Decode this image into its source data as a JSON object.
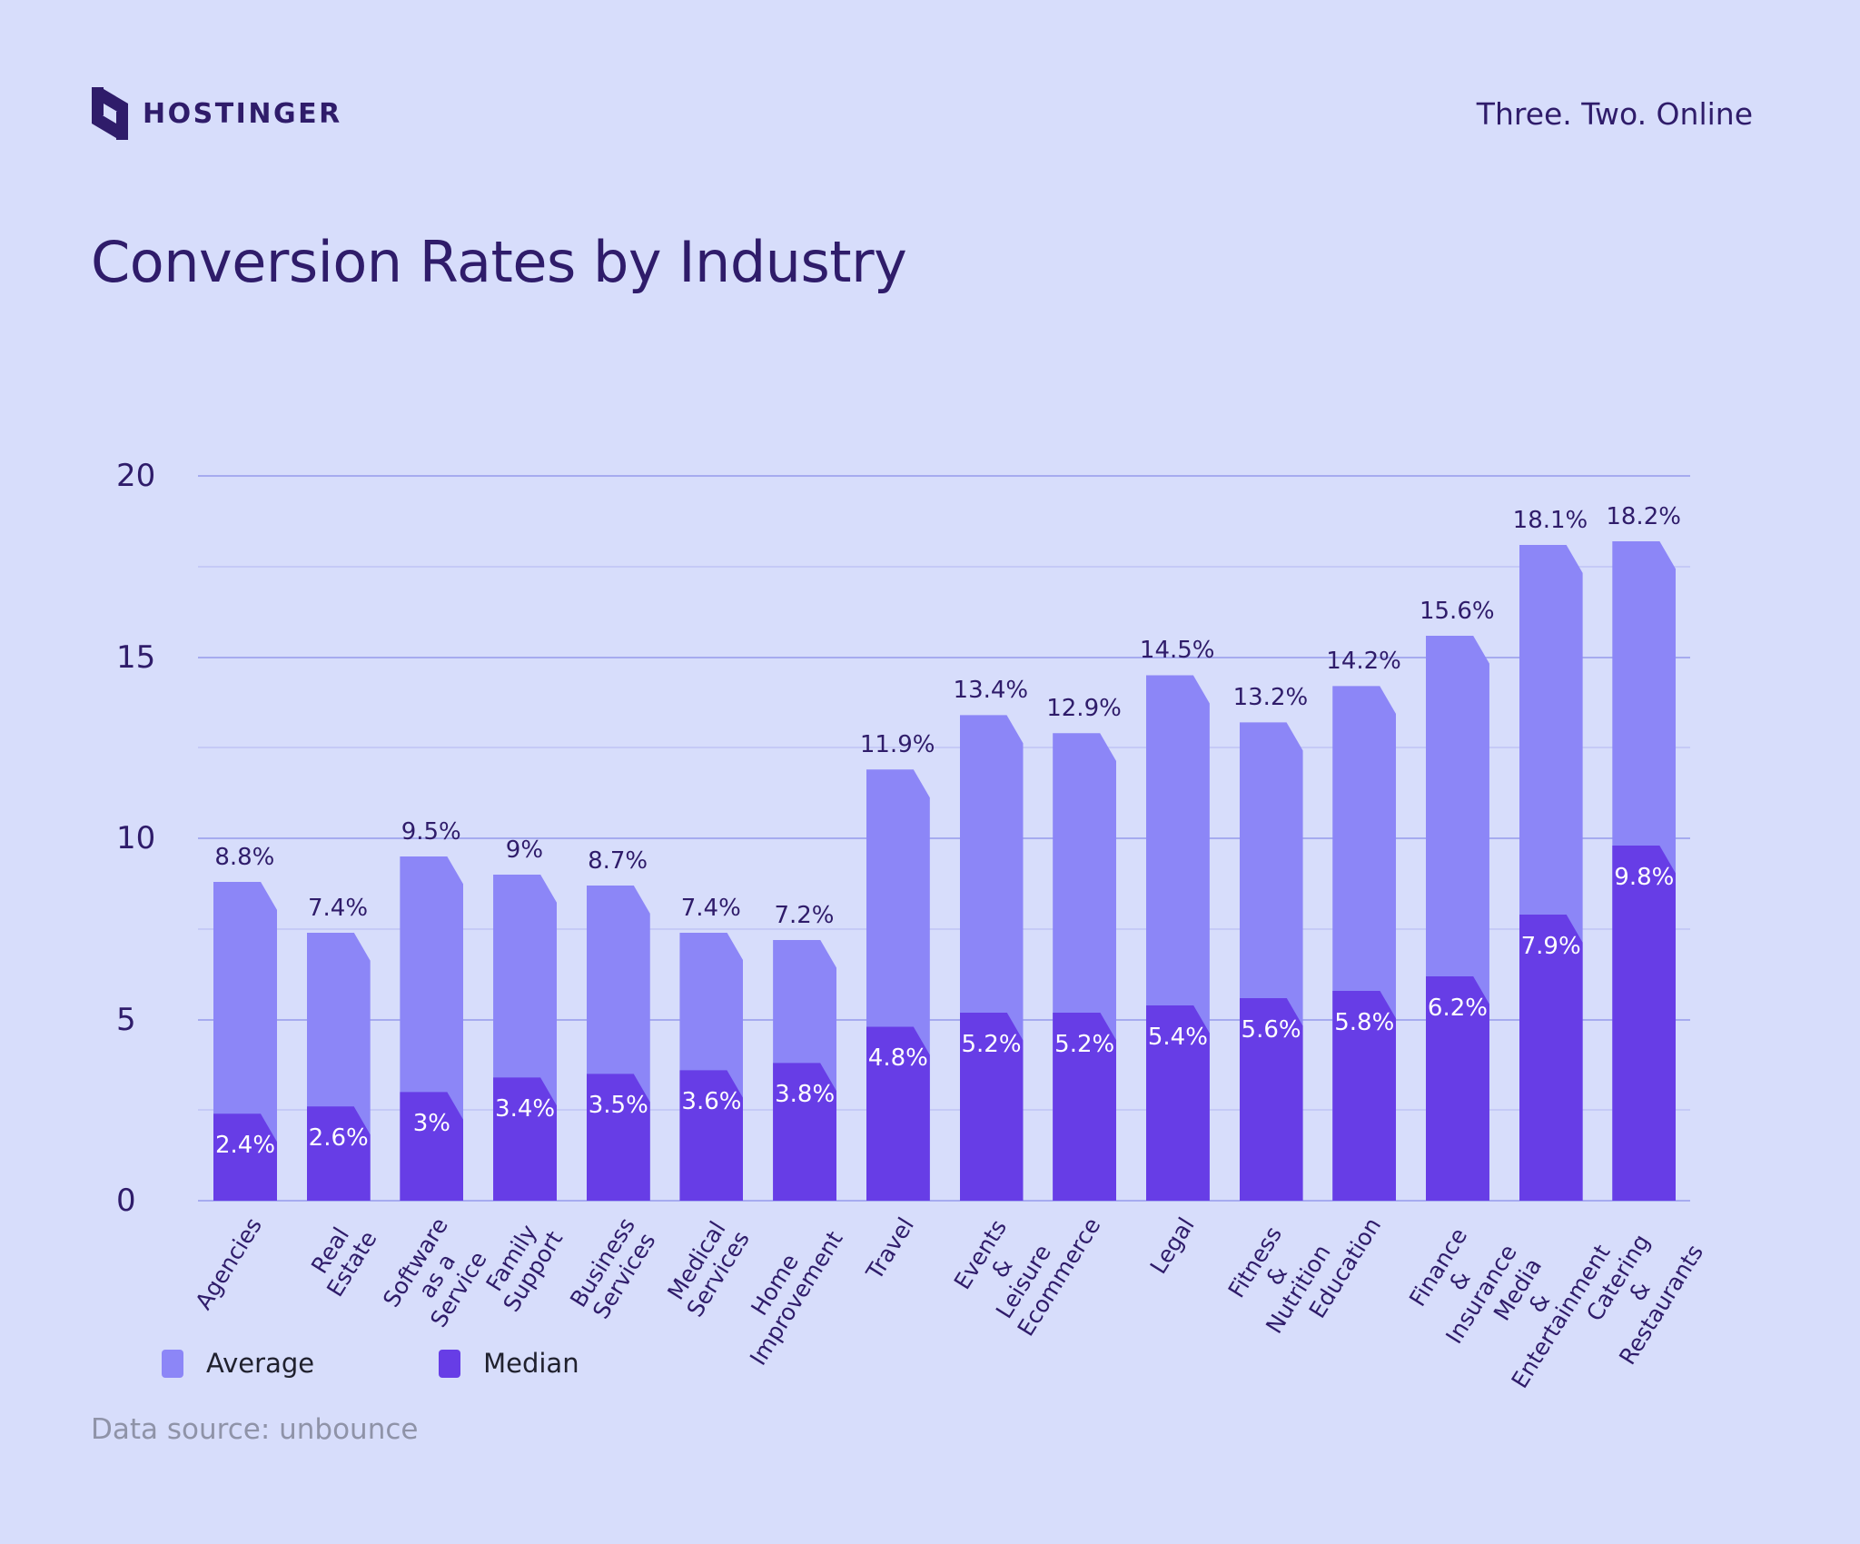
{
  "header": {
    "brand": "HOSTINGER",
    "tagline": "Three. Two. Online"
  },
  "title": "Conversion Rates by Industry",
  "legend_items": [
    {
      "label": "Average",
      "color": "#8C86F7"
    },
    {
      "label": "Median",
      "color": "#673DE6"
    }
  ],
  "source_note": "Data source: unbounce",
  "colors": {
    "background": "#D7DDFB",
    "average_bar": "#8C86F7",
    "median_bar": "#673DE6",
    "text_dark": "#2F1C6A",
    "grid_major": "#A6ABEF",
    "grid_minor": "#C5CAF6",
    "median_label_text": "#FFFFFF",
    "source_text": "#8F93A8"
  },
  "chart_data": {
    "type": "bar",
    "title": "Conversion Rates by Industry",
    "categories": [
      "Agencies",
      "Real Estate",
      "Software as a Service",
      "Family Support",
      "Business Services",
      "Medical Services",
      "Home Improvement",
      "Travel",
      "Events & Leisure",
      "Ecommerce",
      "Legal",
      "Fitness & Nutrition",
      "Education",
      "Finance & Insurance",
      "Media & Entertainment",
      "Catering & Restaurants"
    ],
    "category_lines": [
      [
        "Agencies"
      ],
      [
        "Real",
        "Estate"
      ],
      [
        "Software",
        "as a",
        "Service"
      ],
      [
        "Family",
        "Support"
      ],
      [
        "Business",
        "Services"
      ],
      [
        "Medical",
        "Services"
      ],
      [
        "Home",
        "Improvement"
      ],
      [
        "Travel"
      ],
      [
        "Events",
        "&",
        "Leisure"
      ],
      [
        "Ecommerce"
      ],
      [
        "Legal"
      ],
      [
        "Fitness",
        "&",
        "Nutrition"
      ],
      [
        "Education"
      ],
      [
        "Finance",
        "&",
        "Insurance"
      ],
      [
        "Media",
        "&",
        "Entertainment"
      ],
      [
        "Catering",
        "&",
        "Restaurants"
      ]
    ],
    "series": [
      {
        "name": "Average",
        "color": "#8C86F7",
        "values": [
          8.8,
          7.4,
          9.5,
          9,
          8.7,
          7.4,
          7.2,
          11.9,
          13.4,
          12.9,
          14.5,
          13.2,
          14.2,
          15.6,
          18.1,
          18.2
        ],
        "labels": [
          "8.8%",
          "7.4%",
          "9.5%",
          "9%",
          "8.7%",
          "7.4%",
          "7.2%",
          "11.9%",
          "13.4%",
          "12.9%",
          "14.5%",
          "13.2%",
          "14.2%",
          "15.6%",
          "18.1%",
          "18.2%"
        ]
      },
      {
        "name": "Median",
        "color": "#673DE6",
        "values": [
          2.4,
          2.6,
          3,
          3.4,
          3.5,
          3.6,
          3.8,
          4.8,
          5.2,
          5.2,
          5.4,
          5.6,
          5.8,
          6.2,
          7.9,
          9.8
        ],
        "labels": [
          "2.4%",
          "2.6%",
          "3%",
          "3.4%",
          "3.5%",
          "3.6%",
          "3.8%",
          "4.8%",
          "5.2%",
          "5.2%",
          "5.4%",
          "5.6%",
          "5.8%",
          "6.2%",
          "7.9%",
          "9.8%"
        ]
      }
    ],
    "xlabel": "",
    "ylabel": "",
    "ylim": [
      0,
      20
    ],
    "y_ticks": [
      0,
      5,
      10,
      15,
      20
    ],
    "grid": true,
    "grid_step": 2.5,
    "legend_position": "bottom-left",
    "bar_style": "chamfered-top-right-corner"
  }
}
